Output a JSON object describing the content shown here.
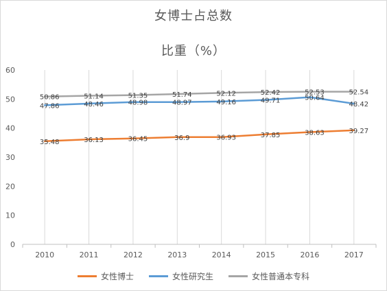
{
  "chart_data": {
    "type": "line",
    "title": "女博士占总数",
    "subtitle": "比重（%）",
    "categories": [
      "2010",
      "2011",
      "2012",
      "2013",
      "2014",
      "2015",
      "2016",
      "2017"
    ],
    "ylim": [
      0,
      60
    ],
    "yticks": [
      "0",
      "10",
      "20",
      "30",
      "40",
      "50",
      "60"
    ],
    "grid": "vertical",
    "legend_position": "bottom",
    "series": [
      {
        "name": "女性博士",
        "color": "#ed7d31",
        "values": [
          35.48,
          36.13,
          36.45,
          36.9,
          36.93,
          37.85,
          38.63,
          39.27
        ],
        "labels": [
          "35.48",
          "36.13",
          "36.45",
          "36.9",
          "36.93",
          "37.85",
          "38.63",
          "39.27"
        ]
      },
      {
        "name": "女性研究生",
        "color": "#5b9bd5",
        "values": [
          47.86,
          48.46,
          48.98,
          48.97,
          49.16,
          49.71,
          50.64,
          48.42
        ],
        "labels": [
          "47.86",
          "48.46",
          "48.98",
          "48.97",
          "49.16",
          "49.71",
          "50.64",
          "48.42"
        ]
      },
      {
        "name": "女性普通本专科",
        "color": "#a5a5a5",
        "values": [
          50.86,
          51.14,
          51.35,
          51.74,
          52.12,
          52.42,
          52.53,
          52.54
        ],
        "labels": [
          "50.86",
          "51.14",
          "51.35",
          "51.74",
          "52.12",
          "52.42",
          "52.53",
          "52.54"
        ]
      }
    ]
  }
}
